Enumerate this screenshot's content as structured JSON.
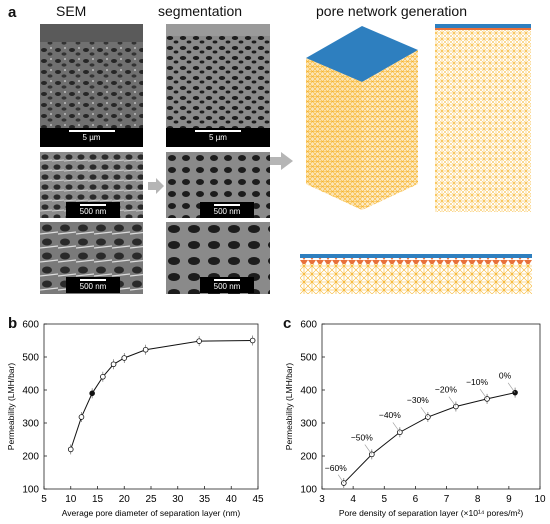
{
  "panel_a": {
    "label": "a",
    "headings": {
      "sem": "SEM",
      "segmentation": "segmentation",
      "network": "pore network generation"
    },
    "scalebars": {
      "large": "5 µm",
      "small": "500 nm"
    },
    "colors": {
      "sem_gray": "#6b6b6b",
      "seg_dark": "#1c1c1c",
      "seg_gray": "#8a8a8a",
      "membrane_top": "#2e7fbf",
      "network": "#f7b52b"
    }
  },
  "chart_data": [
    {
      "panel_label": "b",
      "type": "line",
      "xlabel": "Average pore diameter of separation layer (nm)",
      "ylabel": "Permeability (LMH/bar)",
      "xlim": [
        5,
        45
      ],
      "ylim": [
        100,
        600
      ],
      "xticks": [
        5,
        10,
        15,
        20,
        25,
        30,
        35,
        40,
        45
      ],
      "yticks": [
        100,
        200,
        300,
        400,
        500,
        600
      ],
      "x": [
        10,
        12,
        14,
        16,
        18,
        20,
        24,
        34,
        44
      ],
      "y": [
        220,
        318,
        390,
        440,
        478,
        497,
        522,
        548,
        550
      ],
      "filled_index": 2
    },
    {
      "panel_label": "c",
      "type": "line",
      "xlabel": "Pore density of separation layer (×10¹⁴ pores/m²)",
      "ylabel": "Permeability (LMH/bar)",
      "xlim": [
        3,
        10
      ],
      "ylim": [
        100,
        600
      ],
      "xticks": [
        3,
        4,
        5,
        6,
        7,
        8,
        9,
        10
      ],
      "yticks": [
        100,
        200,
        300,
        400,
        500,
        600
      ],
      "x": [
        3.7,
        4.6,
        5.5,
        6.4,
        7.3,
        8.3,
        9.2
      ],
      "y": [
        118,
        205,
        272,
        318,
        350,
        373,
        392
      ],
      "filled_index": 6,
      "annotations": [
        "−60%",
        "−50%",
        "−40%",
        "−30%",
        "−20%",
        "−10%",
        "0%"
      ]
    }
  ]
}
